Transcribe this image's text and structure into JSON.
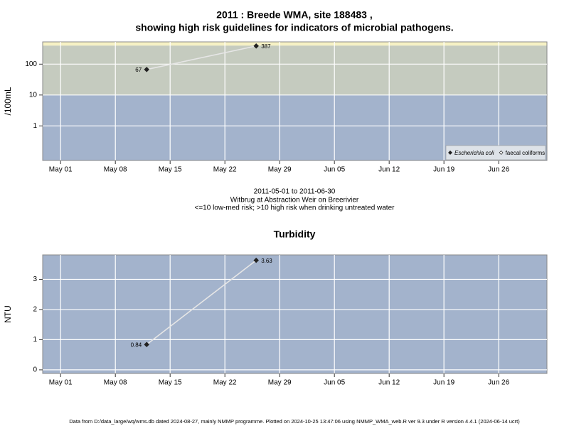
{
  "title": [
    "2011 : Breede WMA, site 188483 ,",
    "showing high risk guidelines for indicators of microbial pathogens."
  ],
  "notes": [
    "2011-05-01 to 2011-06-30",
    "Witbrug at Abstraction Weir on Breerivier",
    "<=10 low-med risk; >10 high risk when drinking untreated water"
  ],
  "footer": "Data from D:/data_large/wq/wms.db dated 2024-08-27, mainly NMMP programme. Plotted on 2024-10-25 13:47:06 using NMMP_WMA_web.R ver 9.3 under R version 4.4.1 (2024-06-14 ucrt)",
  "chart_data": [
    {
      "type": "line",
      "ylabel": "/100mL",
      "log_scale": true,
      "grid": true,
      "legend": "lower right",
      "xlim": [
        "2011-04-28T17:00Z",
        "2011-07-02T04:00Z"
      ],
      "xticks": [
        {
          "value": "2011-05-01",
          "label": "May 01"
        },
        {
          "value": "2011-05-08",
          "label": "May 08"
        },
        {
          "value": "2011-05-15",
          "label": "May 15"
        },
        {
          "value": "2011-05-22",
          "label": "May 22"
        },
        {
          "value": "2011-05-29",
          "label": "May 29"
        },
        {
          "value": "2011-06-05",
          "label": "Jun 05"
        },
        {
          "value": "2011-06-12",
          "label": "Jun 12"
        },
        {
          "value": "2011-06-19",
          "label": "Jun 19"
        },
        {
          "value": "2011-06-26",
          "label": "Jun 26"
        }
      ],
      "ylim": [
        0.076,
        525
      ],
      "yticks": [
        1,
        10,
        100
      ],
      "thresholds": [
        10,
        400
      ],
      "band_colors": [
        "#a3b3cc",
        "#c5cbbf",
        "#f7f2c4"
      ],
      "x": [
        "2011-05-12",
        "2011-05-26"
      ],
      "series": [
        {
          "name": "Escherichia coli",
          "color": "#222222",
          "italic": true,
          "filled": true,
          "values": [
            67,
            387
          ]
        },
        {
          "name": "faecal coliforms",
          "color": "#222222",
          "italic": false,
          "filled": false,
          "values": [
            null,
            null
          ]
        }
      ]
    },
    {
      "type": "line",
      "title": "Turbidity",
      "ylabel": "NTU",
      "log_scale": false,
      "grid": true,
      "xlim": [
        "2011-04-28T17:00Z",
        "2011-07-02T04:00Z"
      ],
      "xticks": [
        {
          "value": "2011-05-01",
          "label": "May 01"
        },
        {
          "value": "2011-05-08",
          "label": "May 08"
        },
        {
          "value": "2011-05-15",
          "label": "May 15"
        },
        {
          "value": "2011-05-22",
          "label": "May 22"
        },
        {
          "value": "2011-05-29",
          "label": "May 29"
        },
        {
          "value": "2011-06-05",
          "label": "Jun 05"
        },
        {
          "value": "2011-06-12",
          "label": "Jun 12"
        },
        {
          "value": "2011-06-19",
          "label": "Jun 19"
        },
        {
          "value": "2011-06-26",
          "label": "Jun 26"
        }
      ],
      "ylim": [
        -0.12,
        3.81
      ],
      "yticks": [
        0,
        1,
        2,
        3
      ],
      "thresholds": [],
      "band_colors": [
        "#a3b3cc"
      ],
      "x": [
        "2011-05-12",
        "2011-05-26"
      ],
      "series": [
        {
          "name": "Turbidity",
          "color": "#222222",
          "filled": true,
          "values": [
            0.84,
            3.63
          ]
        }
      ]
    }
  ]
}
